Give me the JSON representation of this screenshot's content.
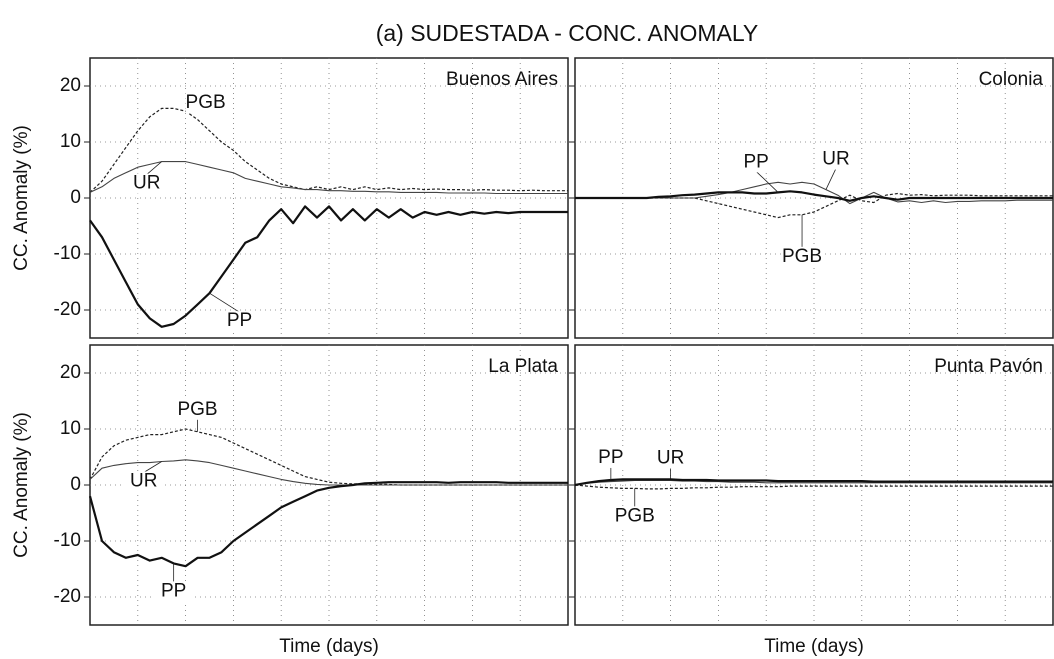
{
  "title": "(a) SUDESTADA - CONC. ANOMALY",
  "chart_data": [
    {
      "type": "line",
      "title": "Buenos Aires",
      "ylabel": "CC. Anomaly (%)",
      "ylim": [
        -25,
        25
      ],
      "yticks": [
        -20,
        -10,
        0,
        10,
        20
      ],
      "grid": true,
      "categories": [
        null,
        null,
        null,
        null,
        null,
        null,
        null,
        null,
        null,
        null,
        null,
        null,
        null,
        null,
        null,
        null,
        null,
        null,
        null,
        null,
        null,
        null,
        null,
        null,
        null,
        null,
        null,
        null,
        null,
        null,
        null,
        null,
        null,
        null,
        null,
        null,
        null,
        null,
        null,
        null,
        null
      ],
      "series": [
        {
          "name": "PGB",
          "color": "#222222",
          "values": [
            1,
            3,
            6,
            9,
            12,
            14.5,
            16,
            16,
            15.5,
            14,
            12,
            10,
            8.5,
            6.5,
            5,
            3.5,
            2.5,
            2,
            1.5,
            2,
            1.5,
            2,
            1.5,
            2,
            1.5,
            1.8,
            1.5,
            1.7,
            1.5,
            1.6,
            1.5,
            1.5,
            1.4,
            1.5,
            1.4,
            1.4,
            1.3,
            1.4,
            1.3,
            1.3,
            1.3
          ]
        },
        {
          "name": "UR",
          "color": "#444444",
          "values": [
            1,
            2,
            3.5,
            4.5,
            5.5,
            6,
            6.5,
            6.5,
            6.5,
            6,
            5.5,
            5,
            4.5,
            3.5,
            3,
            2.5,
            2,
            1.8,
            1.5,
            1.5,
            1.3,
            1.3,
            1.2,
            1.2,
            1.1,
            1.1,
            1,
            1,
            1,
            1,
            0.9,
            0.9,
            0.9,
            0.9,
            0.8,
            0.8,
            0.8,
            0.8,
            0.8,
            0.8,
            0.8
          ]
        },
        {
          "name": "PP",
          "color": "#111111",
          "values": [
            -4,
            -7,
            -11,
            -15,
            -19,
            -21.5,
            -23,
            -22.5,
            -21,
            -19,
            -17,
            -14,
            -11,
            -8,
            -7,
            -4,
            -2,
            -4.5,
            -1.5,
            -3.5,
            -1.5,
            -4,
            -2,
            -4,
            -2,
            -3.5,
            -2,
            -3.5,
            -2.5,
            -3,
            -2.5,
            -3,
            -2.5,
            -2.8,
            -2.5,
            -2.7,
            -2.5,
            -2.5,
            -2.5,
            -2.5,
            -2.5
          ]
        }
      ]
    },
    {
      "type": "line",
      "title": "Colonia",
      "ylim": [
        -25,
        25
      ],
      "yticks": [
        -20,
        -10,
        0,
        10,
        20
      ],
      "grid": true,
      "categories": [
        null,
        null,
        null,
        null,
        null,
        null,
        null,
        null,
        null,
        null,
        null,
        null,
        null,
        null,
        null,
        null,
        null,
        null,
        null,
        null,
        null,
        null,
        null,
        null,
        null,
        null,
        null,
        null,
        null,
        null,
        null,
        null,
        null,
        null,
        null,
        null,
        null,
        null,
        null,
        null,
        null
      ],
      "series": [
        {
          "name": "PGB",
          "color": "#222222",
          "values": [
            0,
            0,
            0,
            0,
            0,
            0,
            0,
            0,
            0,
            0,
            0,
            -0.5,
            -1,
            -1.5,
            -2,
            -2.5,
            -3,
            -3.5,
            -3,
            -3,
            -2.5,
            -1.5,
            -0.5,
            0.5,
            -0.5,
            -0.8,
            0.5,
            0.8,
            0.5,
            0.6,
            0.4,
            0.5,
            0.5,
            0.5,
            0.4,
            0.4,
            0.4,
            0.4,
            0.4,
            0.4,
            0.4
          ]
        },
        {
          "name": "UR",
          "color": "#444444",
          "values": [
            0,
            0,
            0,
            0,
            0,
            0,
            0,
            0,
            0,
            0,
            0,
            0.3,
            0.6,
            1,
            1.5,
            2,
            2.5,
            2.8,
            2.5,
            2.8,
            2.5,
            1.5,
            0.5,
            -1,
            0,
            1,
            0,
            -0.7,
            -0.5,
            -0.8,
            -0.5,
            -0.8,
            -0.6,
            -0.6,
            -0.5,
            -0.5,
            -0.5,
            -0.4,
            -0.4,
            -0.4,
            -0.4
          ]
        },
        {
          "name": "PP",
          "color": "#111111",
          "values": [
            0,
            0,
            0,
            0,
            0,
            0,
            0,
            0.2,
            0.3,
            0.5,
            0.6,
            0.8,
            1,
            1,
            1,
            0.8,
            0.8,
            1,
            1.2,
            1,
            0.6,
            0.3,
            0,
            -0.5,
            0,
            0.3,
            0,
            -0.3,
            0,
            0,
            0,
            0,
            0,
            0,
            0,
            0,
            0,
            0,
            0,
            0,
            0
          ]
        }
      ]
    },
    {
      "type": "line",
      "title": "La Plata",
      "ylabel": "CC. Anomaly (%)",
      "xlabel": "Time (days)",
      "ylim": [
        -25,
        25
      ],
      "yticks": [
        -20,
        -10,
        0,
        10,
        20
      ],
      "grid": true,
      "categories": [
        null,
        null,
        null,
        null,
        null,
        null,
        null,
        null,
        null,
        null,
        null,
        null,
        null,
        null,
        null,
        null,
        null,
        null,
        null,
        null,
        null,
        null,
        null,
        null,
        null,
        null,
        null,
        null,
        null,
        null,
        null,
        null,
        null,
        null,
        null,
        null,
        null,
        null,
        null,
        null,
        null
      ],
      "series": [
        {
          "name": "PGB",
          "color": "#222222",
          "values": [
            1,
            5,
            7,
            8,
            8.5,
            9,
            9,
            9.5,
            10,
            9.5,
            9,
            8.5,
            7.5,
            6.5,
            5.5,
            4.5,
            3.5,
            2.5,
            1.5,
            1,
            0.5,
            0.3,
            0.2,
            0.2,
            0.1,
            0.1,
            0,
            0,
            0,
            0,
            0,
            0,
            0,
            0,
            0,
            0,
            0,
            0,
            0,
            0,
            0
          ]
        },
        {
          "name": "UR",
          "color": "#444444",
          "values": [
            1,
            3,
            3.5,
            3.8,
            4,
            4,
            4.2,
            4.3,
            4.5,
            4.3,
            4,
            3.5,
            3,
            2.5,
            2,
            1.5,
            1,
            0.6,
            0.3,
            0.1,
            0,
            0,
            0,
            0,
            0,
            0,
            0,
            0,
            0,
            0,
            0,
            0,
            0,
            0,
            0,
            0,
            0,
            0,
            0,
            0,
            0
          ]
        },
        {
          "name": "PP",
          "color": "#111111",
          "values": [
            -2,
            -10,
            -12,
            -13,
            -12.5,
            -13.5,
            -13,
            -14,
            -14.5,
            -13,
            -13,
            -12,
            -10,
            -8.5,
            -7,
            -5.5,
            -4,
            -3,
            -2,
            -1,
            -0.5,
            -0.2,
            0,
            0.3,
            0.4,
            0.5,
            0.5,
            0.5,
            0.5,
            0.5,
            0.4,
            0.5,
            0.5,
            0.5,
            0.5,
            0.4,
            0.4,
            0.4,
            0.4,
            0.4,
            0.4
          ]
        }
      ]
    },
    {
      "type": "line",
      "title": "Punta Pavón",
      "xlabel": "Time (days)",
      "ylim": [
        -25,
        25
      ],
      "yticks": [
        -20,
        -10,
        0,
        10,
        20
      ],
      "grid": true,
      "categories": [
        null,
        null,
        null,
        null,
        null,
        null,
        null,
        null,
        null,
        null,
        null,
        null,
        null,
        null,
        null,
        null,
        null,
        null,
        null,
        null,
        null,
        null,
        null,
        null,
        null,
        null,
        null,
        null,
        null,
        null,
        null,
        null,
        null,
        null,
        null,
        null,
        null,
        null,
        null,
        null,
        null
      ],
      "series": [
        {
          "name": "PGB",
          "color": "#222222",
          "values": [
            0,
            -0.2,
            -0.4,
            -0.5,
            -0.6,
            -0.6,
            -0.7,
            -0.7,
            -0.6,
            -0.6,
            -0.5,
            -0.5,
            -0.4,
            -0.4,
            -0.3,
            -0.3,
            -0.3,
            -0.3,
            -0.2,
            -0.2,
            -0.2,
            -0.2,
            -0.2,
            -0.2,
            -0.2,
            -0.2,
            -0.2,
            -0.2,
            -0.2,
            -0.2,
            -0.2,
            -0.2,
            -0.2,
            -0.2,
            -0.2,
            -0.2,
            -0.2,
            -0.2,
            -0.2,
            -0.2,
            -0.2
          ]
        },
        {
          "name": "UR",
          "color": "#444444",
          "values": [
            0,
            0.3,
            0.5,
            0.6,
            0.7,
            0.8,
            0.8,
            0.8,
            0.8,
            0.7,
            0.7,
            0.6,
            0.6,
            0.5,
            0.5,
            0.5,
            0.4,
            0.4,
            0.4,
            0.4,
            0.4,
            0.4,
            0.4,
            0.4,
            0.4,
            0.4,
            0.4,
            0.4,
            0.4,
            0.4,
            0.4,
            0.4,
            0.4,
            0.4,
            0.4,
            0.4,
            0.4,
            0.4,
            0.4,
            0.4,
            0.4
          ]
        },
        {
          "name": "PP",
          "color": "#111111",
          "values": [
            0,
            0.4,
            0.7,
            0.9,
            1,
            1,
            1,
            1,
            1,
            0.9,
            0.9,
            0.9,
            0.8,
            0.8,
            0.8,
            0.8,
            0.8,
            0.7,
            0.7,
            0.7,
            0.7,
            0.7,
            0.7,
            0.7,
            0.7,
            0.6,
            0.6,
            0.6,
            0.6,
            0.6,
            0.6,
            0.6,
            0.6,
            0.6,
            0.6,
            0.6,
            0.6,
            0.6,
            0.6,
            0.6,
            0.6
          ]
        }
      ]
    }
  ]
}
